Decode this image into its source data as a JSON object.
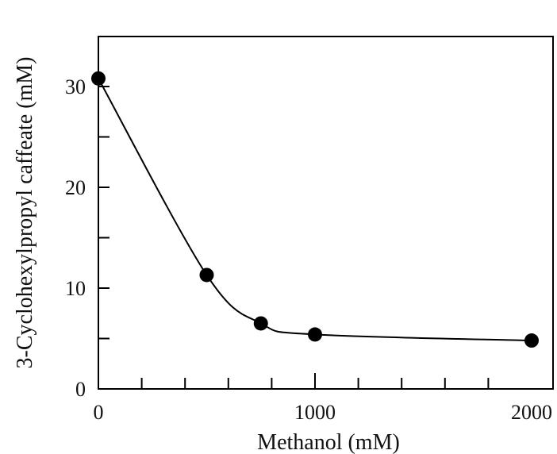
{
  "chart_data": {
    "type": "scatter",
    "title": "",
    "xlabel": "Methanol (mM)",
    "ylabel": "3-Cyclohexylpropyl caffeate (mM)",
    "xlim": [
      0,
      2000
    ],
    "ylim": [
      0,
      35
    ],
    "x_ticks_labeled": [
      0,
      1000,
      2000
    ],
    "x_ticks_minor_step": 200,
    "y_ticks_labeled": [
      0,
      10,
      20,
      30
    ],
    "y_ticks_minor_step": 5,
    "grid": false,
    "legend": "none",
    "series": [
      {
        "x": [
          0,
          500,
          750,
          1000,
          2000
        ],
        "y": [
          30.8,
          11.3,
          6.5,
          5.4,
          4.8
        ],
        "marker": "filled-circle",
        "fit_line": "smooth",
        "color": "#000000"
      }
    ]
  }
}
